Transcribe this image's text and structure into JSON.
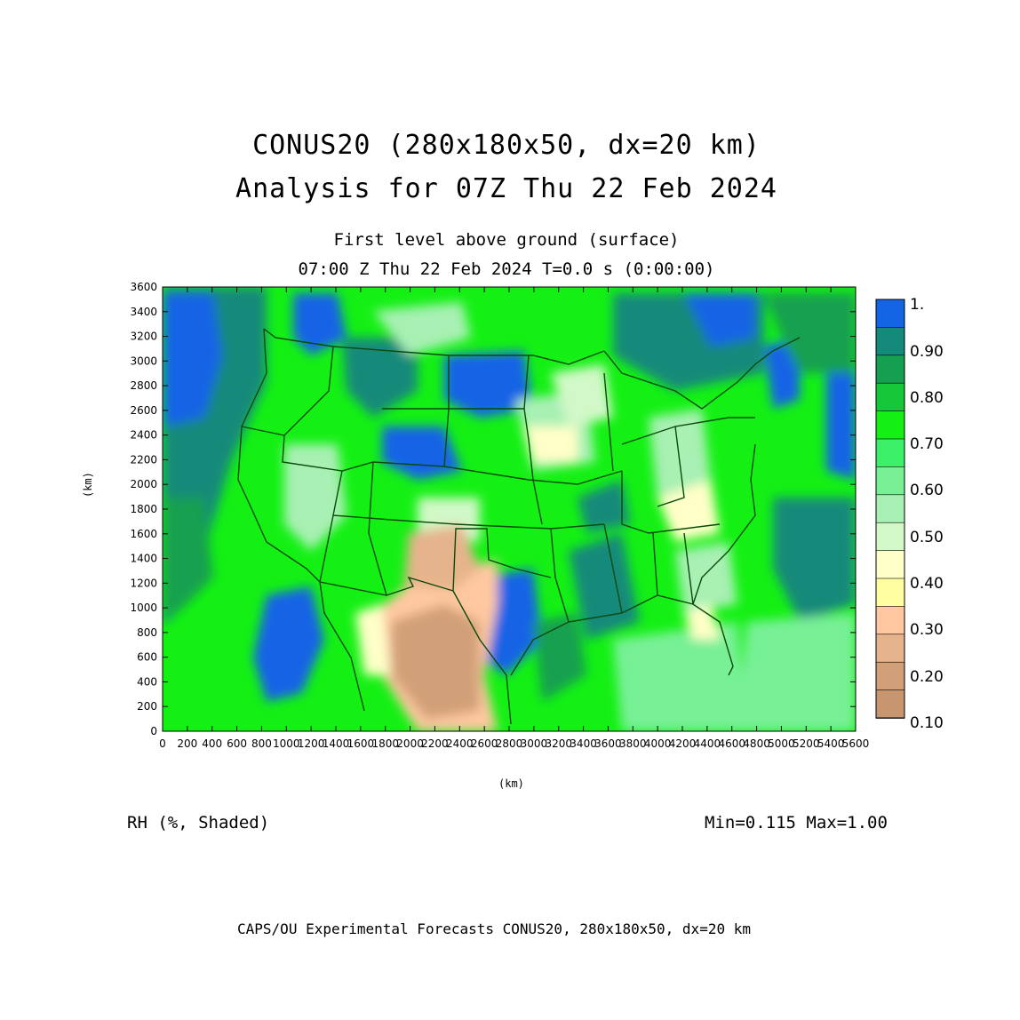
{
  "title": {
    "line1": "CONUS20 (280x180x50, dx=20 km)",
    "line2": "Analysis for 07Z Thu 22 Feb 2024"
  },
  "subtitle": {
    "line1": "First level above ground (surface)",
    "line2": "07:00 Z Thu 22 Feb 2024    T=0.0 s (0:00:00)"
  },
  "axes": {
    "x_label": "(km)",
    "y_label": "(km)",
    "x_ticks": [
      "0",
      "200",
      "400",
      "600",
      "800",
      "1000",
      "1200",
      "1400",
      "1600",
      "1800",
      "2000",
      "2200",
      "2400",
      "2600",
      "2800",
      "3000",
      "3200",
      "3400",
      "3600",
      "3800",
      "4000",
      "4200",
      "4400",
      "4600",
      "4800",
      "5000",
      "5200",
      "5400",
      "5600"
    ],
    "y_ticks": [
      "0",
      "200",
      "400",
      "600",
      "800",
      "1000",
      "1200",
      "1400",
      "1600",
      "1800",
      "2000",
      "2200",
      "2400",
      "2600",
      "2800",
      "3000",
      "3200",
      "3400",
      "3600"
    ],
    "x_range": [
      0,
      5600
    ],
    "y_range": [
      0,
      3600
    ]
  },
  "colorbar": {
    "labels": [
      "1.",
      "0.90",
      "0.80",
      "0.70",
      "0.60",
      "0.50",
      "0.40",
      "0.30",
      "0.20",
      "0.10"
    ],
    "colors": [
      "#1464e6",
      "#138a7a",
      "#14a050",
      "#14c83a",
      "#14f014",
      "#3cf06a",
      "#78f096",
      "#a8f0b4",
      "#d2f8c8",
      "#ffffc8",
      "#ffffa0",
      "#ffc8a0",
      "#e6b48c",
      "#d2a078",
      "#c8966e"
    ]
  },
  "variable_label": "RH (%, Shaded)",
  "min_max": "Min=0.115  Max=1.00",
  "footer": "CAPS/OU Experimental Forecasts  CONUS20, 280x180x50, dx=20 km",
  "chart_data": {
    "type": "heatmap",
    "field": "RH",
    "min": 0.115,
    "max": 1.0,
    "xlabel": "(km)",
    "ylabel": "(km)",
    "xlim": [
      0,
      5600
    ],
    "ylim": [
      0,
      3600
    ]
  }
}
